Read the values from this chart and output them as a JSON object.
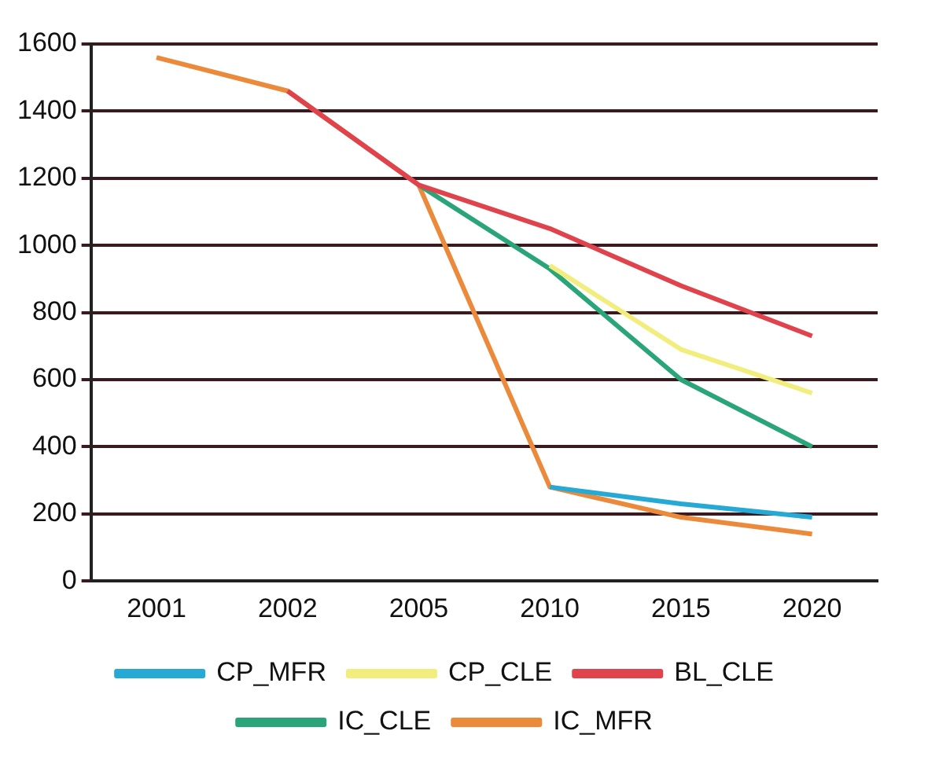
{
  "chart_data": {
    "type": "line",
    "categories": [
      "2001",
      "2002",
      "2005",
      "2010",
      "2015",
      "2020"
    ],
    "series": [
      {
        "name": "CP_MFR",
        "color": "#27a9d6",
        "values": [
          null,
          null,
          null,
          280,
          230,
          190
        ]
      },
      {
        "name": "CP_CLE",
        "color": "#f2ee7e",
        "values": [
          null,
          null,
          null,
          940,
          690,
          560
        ]
      },
      {
        "name": "BL_CLE",
        "color": "#e0434c",
        "values": [
          null,
          1460,
          1180,
          1050,
          880,
          730
        ]
      },
      {
        "name": "IC_CLE",
        "color": "#2aa57a",
        "values": [
          null,
          null,
          1180,
          930,
          600,
          400
        ]
      },
      {
        "name": "IC_MFR",
        "color": "#ec8a3c",
        "values": [
          1560,
          1460,
          1180,
          280,
          190,
          140
        ]
      }
    ],
    "ylim": [
      0,
      1600
    ],
    "yticks": [
      0,
      200,
      400,
      600,
      800,
      1000,
      1200,
      1400,
      1600
    ],
    "grid": "y",
    "legend": "bottom",
    "marker": "none",
    "line_style": "solid"
  }
}
